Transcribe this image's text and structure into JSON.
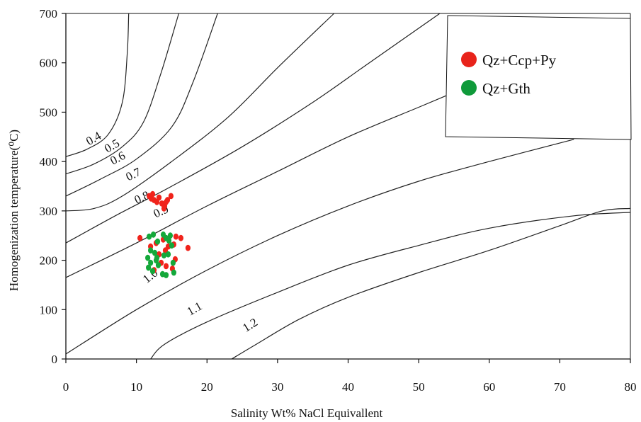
{
  "chart_data": {
    "type": "scatter",
    "xlabel": "Salinity Wt% NaCl Equivallent",
    "ylabel": "Homogenization temperature(⁰C)",
    "xlim": [
      0,
      80
    ],
    "ylim": [
      0,
      700
    ],
    "xticks": [
      "0",
      "10",
      "20",
      "30",
      "40",
      "50",
      "60",
      "70",
      "80"
    ],
    "yticks": [
      "0",
      "100",
      "200",
      "300",
      "400",
      "500",
      "600",
      "700"
    ],
    "grid": false,
    "legend_position": "top-right",
    "isopleths": [
      {
        "label": "0.4",
        "points": [
          [
            0,
            410
          ],
          [
            3,
            425
          ],
          [
            6,
            455
          ],
          [
            8,
            520
          ],
          [
            8.7,
            620
          ],
          [
            8.9,
            700
          ]
        ],
        "label_at": [
          4.2,
          440
        ],
        "label_rot": -30
      },
      {
        "label": "0.5",
        "points": [
          [
            0,
            375
          ],
          [
            4,
            395
          ],
          [
            8,
            430
          ],
          [
            11,
            480
          ],
          [
            13.5,
            580
          ],
          [
            16,
            700
          ]
        ],
        "label_at": [
          6.8,
          425
        ],
        "label_rot": -30
      },
      {
        "label": "0.6",
        "points": [
          [
            0,
            330
          ],
          [
            5,
            365
          ],
          [
            10,
            405
          ],
          [
            15,
            470
          ],
          [
            18,
            560
          ],
          [
            21.5,
            700
          ]
        ],
        "label_at": [
          7.6,
          400
        ],
        "label_rot": -28
      },
      {
        "label": "0.7",
        "points": [
          [
            0,
            300
          ],
          [
            4,
            305
          ],
          [
            8,
            330
          ],
          [
            15,
            400
          ],
          [
            23,
            490
          ],
          [
            30,
            590
          ],
          [
            38,
            700
          ]
        ],
        "label_at": [
          9.8,
          367
        ],
        "label_rot": -26
      },
      {
        "label": "0.8",
        "points": [
          [
            0,
            235
          ],
          [
            7,
            290
          ],
          [
            15,
            350
          ],
          [
            25,
            430
          ],
          [
            35,
            520
          ],
          [
            43,
            600
          ],
          [
            53,
            700
          ]
        ],
        "label_at": [
          11,
          320
        ],
        "label_rot": -25
      },
      {
        "label": "0.9",
        "points": [
          [
            0,
            165
          ],
          [
            10,
            235
          ],
          [
            20,
            310
          ],
          [
            30,
            380
          ],
          [
            40,
            450
          ],
          [
            50,
            510
          ],
          [
            55,
            540
          ]
        ],
        "label_at": [
          13.7,
          292
        ],
        "label_rot": -24
      },
      {
        "label": "1.0",
        "points": [
          [
            0,
            10
          ],
          [
            10,
            100
          ],
          [
            20,
            180
          ],
          [
            30,
            250
          ],
          [
            40,
            310
          ],
          [
            50,
            360
          ],
          [
            60,
            400
          ],
          [
            72,
            445
          ]
        ],
        "label_at": [
          12.3,
          162
        ],
        "label_rot": -38
      },
      {
        "label": "1.1",
        "points": [
          [
            12,
            0
          ],
          [
            14,
            30
          ],
          [
            20,
            75
          ],
          [
            30,
            135
          ],
          [
            40,
            190
          ],
          [
            50,
            230
          ],
          [
            60,
            265
          ],
          [
            72,
            290
          ],
          [
            80,
            297
          ]
        ],
        "label_at": [
          18.5,
          95
        ],
        "label_rot": -30
      },
      {
        "label": "1.2",
        "points": [
          [
            23.5,
            0
          ],
          [
            27,
            30
          ],
          [
            33,
            80
          ],
          [
            40,
            125
          ],
          [
            50,
            175
          ],
          [
            60,
            220
          ],
          [
            70,
            270
          ],
          [
            76,
            300
          ],
          [
            80,
            305
          ]
        ],
        "label_at": [
          26.4,
          62
        ],
        "label_rot": -32
      }
    ],
    "series": [
      {
        "name": "Qz+Ccp+Py",
        "color": "#f0231b",
        "points": [
          [
            11.8,
            330
          ],
          [
            12.1,
            325
          ],
          [
            12.5,
            322
          ],
          [
            12.9,
            318
          ],
          [
            13.2,
            327
          ],
          [
            13.6,
            315
          ],
          [
            14.0,
            310
          ],
          [
            14.4,
            322
          ],
          [
            14.9,
            330
          ],
          [
            13.9,
            305
          ],
          [
            12.3,
            334
          ],
          [
            14.2,
            318
          ],
          [
            10.5,
            245
          ],
          [
            12.0,
            228
          ],
          [
            12.8,
            235
          ],
          [
            13.2,
            212
          ],
          [
            13.8,
            242
          ],
          [
            14.1,
            220
          ],
          [
            14.5,
            228
          ],
          [
            15.3,
            232
          ],
          [
            15.6,
            248
          ],
          [
            16.3,
            245
          ],
          [
            17.3,
            225
          ],
          [
            15.5,
            202
          ],
          [
            13.5,
            195
          ],
          [
            12.5,
            180
          ],
          [
            14.2,
            188
          ],
          [
            15.1,
            183
          ]
        ]
      },
      {
        "name": "Qz+Gth",
        "color": "#14a83a",
        "points": [
          [
            11.8,
            248
          ],
          [
            12.4,
            252
          ],
          [
            13.0,
            238
          ],
          [
            12.0,
            220
          ],
          [
            12.6,
            215
          ],
          [
            11.6,
            205
          ],
          [
            12.0,
            195
          ],
          [
            12.9,
            205
          ],
          [
            11.7,
            185
          ],
          [
            12.3,
            178
          ],
          [
            13.1,
            190
          ],
          [
            13.8,
            252
          ],
          [
            14.2,
            245
          ],
          [
            14.6,
            240
          ],
          [
            15.0,
            230
          ],
          [
            14.5,
            212
          ],
          [
            13.9,
            210
          ],
          [
            15.2,
            195
          ],
          [
            15.3,
            175
          ],
          [
            14.2,
            170
          ],
          [
            13.7,
            172
          ],
          [
            12.8,
            200
          ],
          [
            14.8,
            250
          ]
        ]
      }
    ],
    "legend": [
      {
        "name": "Qz+Ccp+Py",
        "color": "#e8231b"
      },
      {
        "name": "Qz+Gth",
        "color": "#0f9a3a"
      }
    ]
  }
}
